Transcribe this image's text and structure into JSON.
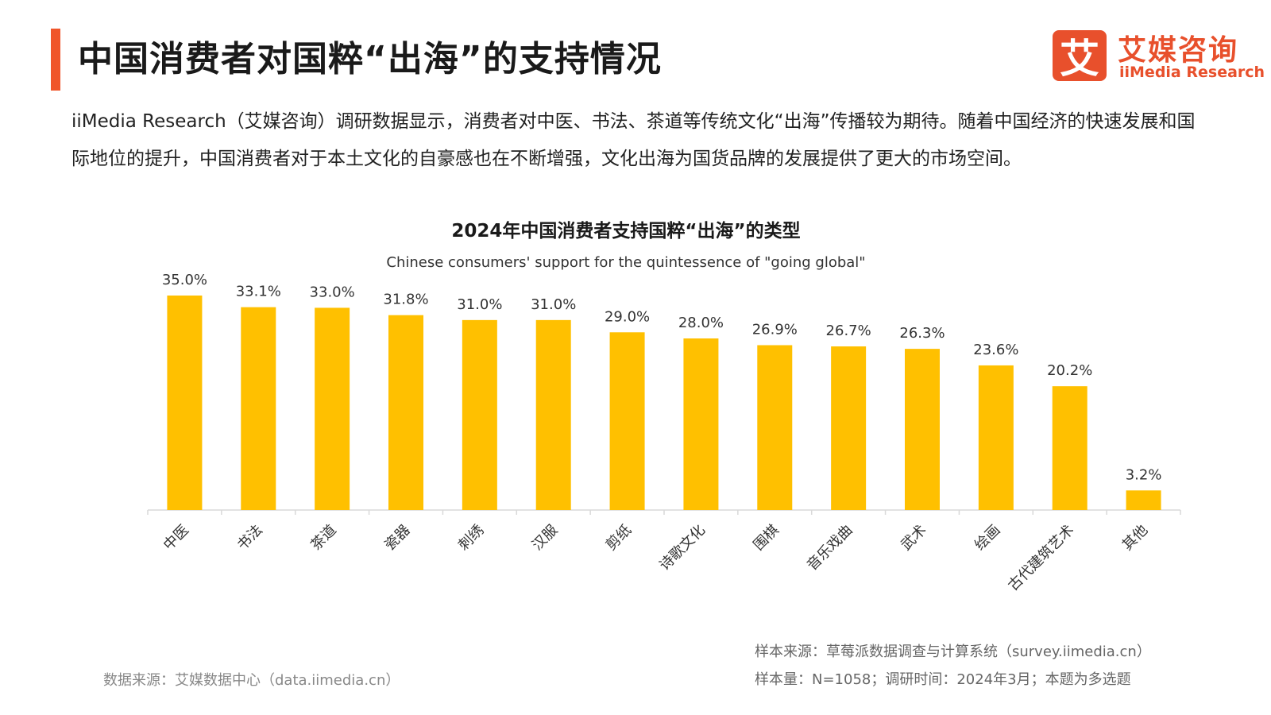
{
  "header": {
    "title": "中国消费者对国粹“出海”的支持情况",
    "accent_color": "#f0552a"
  },
  "logo": {
    "mark": "艾",
    "name_cn": "艾媒咨询",
    "name_en": "iiMedia Research",
    "color": "#e8502c"
  },
  "intro": {
    "text": "iiMedia Research（艾媒咨询）调研数据显示，消费者对中医、书法、茶道等传统文化“出海”传播较为期待。随着中国经济的快速发展和国际地位的提升，中国消费者对于本土文化的自豪感也在不断增强，文化出海为国货品牌的发展提供了更大的市场空间。"
  },
  "chart_data": {
    "type": "bar",
    "title": "2024年中国消费者支持国粹“出海”的类型",
    "subtitle": "Chinese consumers' support for the quintessence of \"going global\"",
    "categories": [
      "中医",
      "书法",
      "茶道",
      "瓷器",
      "刺绣",
      "汉服",
      "剪纸",
      "诗歌文化",
      "围棋",
      "音乐戏曲",
      "武术",
      "绘画",
      "古代建筑艺术",
      "其他"
    ],
    "values": [
      35.0,
      33.1,
      33.0,
      31.8,
      31.0,
      31.0,
      29.0,
      28.0,
      26.9,
      26.7,
      26.3,
      23.6,
      20.2,
      3.2
    ],
    "labels": [
      "35.0%",
      "33.1%",
      "33.0%",
      "31.8%",
      "31.0%",
      "31.0%",
      "29.0%",
      "28.0%",
      "26.9%",
      "26.7%",
      "26.3%",
      "23.6%",
      "20.2%",
      "3.2%"
    ],
    "unit": "%",
    "ylim": [
      0,
      35
    ],
    "grid": false,
    "bar_color": "#ffc000",
    "axis_color": "#d9d9d9"
  },
  "footer": {
    "data_source": "数据来源：艾媒数据中心（data.iimedia.cn）",
    "sample_source": "样本来源：草莓派数据调查与计算系统（survey.iimedia.cn）",
    "sample_size": "样本量：N=1058；调研时间：2024年3月；本题为多选题"
  }
}
